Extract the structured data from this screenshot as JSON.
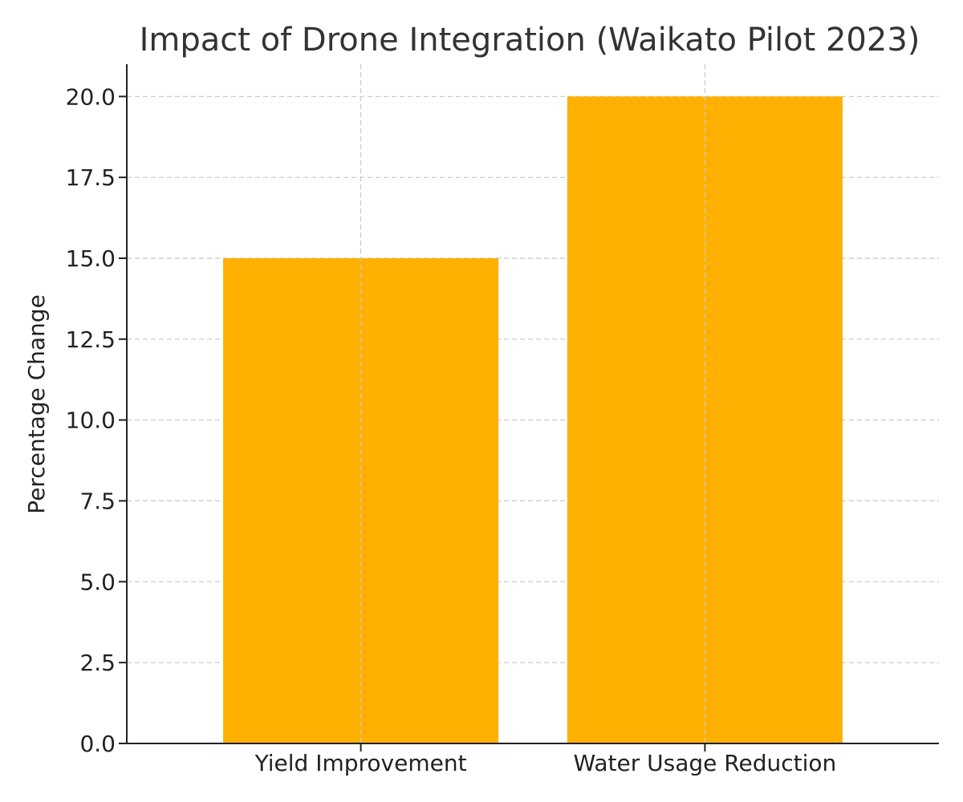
{
  "chart_data": {
    "type": "bar",
    "title": "Impact of Drone Integration (Waikato Pilot 2023)",
    "xlabel": "",
    "ylabel": "Percentage Change",
    "categories": [
      "Yield Improvement",
      "Water Usage Reduction"
    ],
    "values": [
      15,
      20
    ],
    "ylim": [
      0,
      21
    ],
    "yticks": [
      0.0,
      2.5,
      5.0,
      7.5,
      10.0,
      12.5,
      15.0,
      17.5,
      20.0
    ],
    "ytick_labels": [
      "0.0",
      "2.5",
      "5.0",
      "7.5",
      "10.0",
      "12.5",
      "15.0",
      "17.5",
      "20.0"
    ],
    "grid": true,
    "bar_color": "#FFB000",
    "grid_color": "#c8c8c8"
  }
}
